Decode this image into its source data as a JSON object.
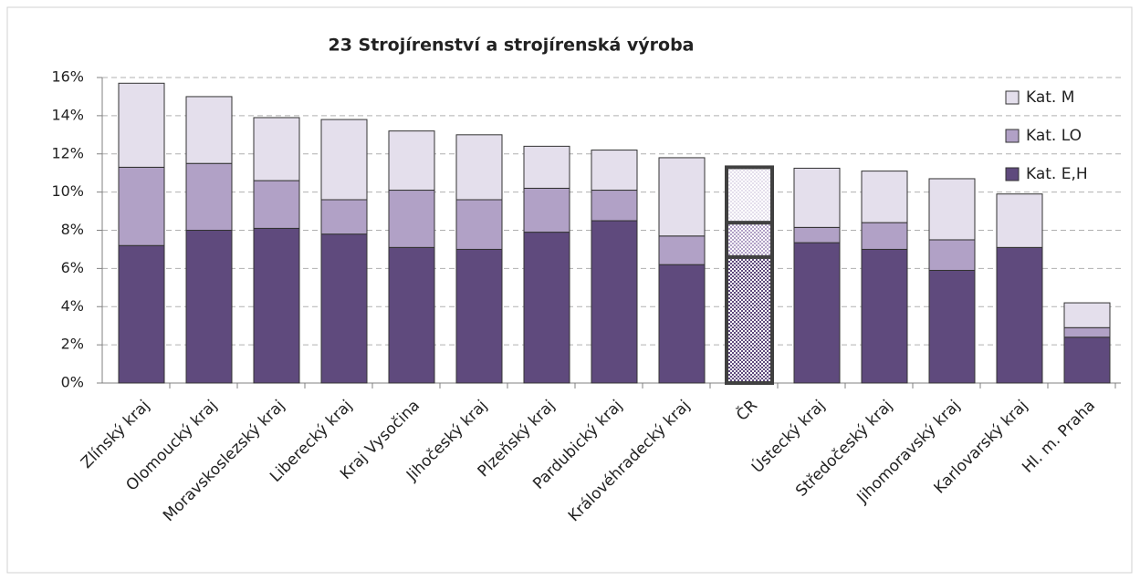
{
  "chart_data": {
    "type": "stacked_bar",
    "title": "23 Strojírenství a strojírenská výroba",
    "categories": [
      "Zlínský kraj",
      "Olomoucký kraj",
      "Moravskoslezský kraj",
      "Liberecký kraj",
      "Kraj Vysočina",
      "Jihočeský kraj",
      "Plzeňský kraj",
      "Pardubický kraj",
      "Královéhradecký kraj",
      "ČR",
      "Ústecký kraj",
      "Středočeský kraj",
      "Jihomoravský kraj",
      "Karlovarský kraj",
      "Hl. m. Praha"
    ],
    "series": [
      {
        "name": "Kat. E,H",
        "color": "#5f4a7d",
        "values": [
          7.2,
          8.0,
          8.1,
          7.8,
          7.1,
          7.0,
          7.9,
          8.5,
          6.2,
          6.6,
          7.35,
          7.0,
          5.9,
          7.1,
          2.4
        ]
      },
      {
        "name": "Kat. LO",
        "color": "#b1a1c6",
        "values": [
          4.1,
          3.5,
          2.5,
          1.8,
          3.0,
          2.6,
          2.3,
          1.6,
          1.5,
          1.8,
          0.8,
          1.4,
          1.6,
          0.0,
          0.5
        ]
      },
      {
        "name": "Kat. M",
        "color": "#e4dfec",
        "values": [
          4.4,
          3.5,
          3.3,
          4.2,
          3.1,
          3.4,
          2.2,
          2.1,
          4.1,
          2.9,
          3.1,
          2.7,
          3.2,
          2.8,
          1.3
        ]
      }
    ],
    "highlight_index": 9,
    "ylim": [
      0,
      16
    ],
    "yticks": [
      {
        "value": 0,
        "label": "0%"
      },
      {
        "value": 2,
        "label": "2%"
      },
      {
        "value": 4,
        "label": "4%"
      },
      {
        "value": 6,
        "label": "6%"
      },
      {
        "value": 8,
        "label": "8%"
      },
      {
        "value": 10,
        "label": "10%"
      },
      {
        "value": 12,
        "label": "12%"
      },
      {
        "value": 14,
        "label": "14%"
      },
      {
        "value": 16,
        "label": "16%"
      }
    ],
    "grid": true,
    "legend": "top-right"
  }
}
